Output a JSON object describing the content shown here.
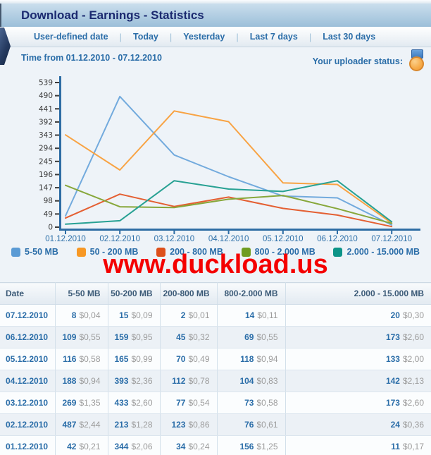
{
  "header": {
    "title": "Download - Earnings - Statistics"
  },
  "tabs": [
    {
      "label": "User-defined date"
    },
    {
      "label": "Today"
    },
    {
      "label": "Yesterday"
    },
    {
      "label": "Last 7 days"
    },
    {
      "label": "Last 30 days"
    }
  ],
  "info": {
    "time_from_label": "Time from 01.12.2010 -  07.12.2010",
    "uploader_status_label": "Your uploader status:",
    "uploader_status_icon": "medal-icon"
  },
  "watermark": "www.duckload.us",
  "colors": {
    "accent_blue": "#2a6da8",
    "axis": "#2e6da4",
    "watermark_red": "#f40000",
    "title_navy": "#1b2a70"
  },
  "chart_data": {
    "type": "line",
    "x": [
      "01.12.2010",
      "02.12.2010",
      "03.12.2010",
      "04.12.2010",
      "05.12.2010",
      "06.12.2010",
      "07.12.2010"
    ],
    "series": [
      {
        "name": "5-50 MB",
        "color": "#72aadd",
        "values": [
          42,
          487,
          269,
          188,
          116,
          109,
          8
        ]
      },
      {
        "name": "50 - 200 MB",
        "color": "#f8a343",
        "values": [
          344,
          213,
          433,
          393,
          165,
          159,
          15
        ]
      },
      {
        "name": "200 - 800 MB",
        "color": "#e45f32",
        "values": [
          34,
          123,
          77,
          112,
          70,
          45,
          2
        ]
      },
      {
        "name": "800 - 2.000 MB",
        "color": "#87a73a",
        "values": [
          156,
          76,
          73,
          104,
          118,
          69,
          14
        ]
      },
      {
        "name": "2.000 - 15.000 MB",
        "color": "#27a193",
        "values": [
          11,
          24,
          173,
          142,
          133,
          173,
          20
        ]
      }
    ],
    "ylim": [
      0,
      539
    ],
    "ytick_step": 49,
    "yticks": [
      0,
      49,
      98,
      147,
      196,
      245,
      294,
      343,
      392,
      441,
      490,
      539
    ],
    "grid": false,
    "legend_position": "bottom",
    "axis_color": "#2e6da4"
  },
  "legend": [
    {
      "label": "5-50 MB",
      "color": "#5b9bd5"
    },
    {
      "label": "50 - 200 MB",
      "color": "#f79825"
    },
    {
      "label": "200 - 800 MB",
      "color": "#dd4f1a"
    },
    {
      "label": "800 - 2.000 MB",
      "color": "#6f9c21"
    },
    {
      "label": "2.000 - 15.000 MB",
      "color": "#0d9488"
    }
  ],
  "table": {
    "columns": [
      "Date",
      "5-50 MB",
      "50-200 MB",
      "200-800 MB",
      "800-2.000 MB",
      "2.000 - 15.000 MB"
    ],
    "rows": [
      {
        "date": "07.12.2010",
        "cells": [
          {
            "count": "8",
            "amount": "$0,04"
          },
          {
            "count": "15",
            "amount": "$0,09"
          },
          {
            "count": "2",
            "amount": "$0,01"
          },
          {
            "count": "14",
            "amount": "$0,11"
          },
          {
            "count": "20",
            "amount": "$0,30"
          }
        ]
      },
      {
        "date": "06.12.2010",
        "cells": [
          {
            "count": "109",
            "amount": "$0,55"
          },
          {
            "count": "159",
            "amount": "$0,95"
          },
          {
            "count": "45",
            "amount": "$0,32"
          },
          {
            "count": "69",
            "amount": "$0,55"
          },
          {
            "count": "173",
            "amount": "$2,60"
          }
        ]
      },
      {
        "date": "05.12.2010",
        "cells": [
          {
            "count": "116",
            "amount": "$0,58"
          },
          {
            "count": "165",
            "amount": "$0,99"
          },
          {
            "count": "70",
            "amount": "$0,49"
          },
          {
            "count": "118",
            "amount": "$0,94"
          },
          {
            "count": "133",
            "amount": "$2,00"
          }
        ]
      },
      {
        "date": "04.12.2010",
        "cells": [
          {
            "count": "188",
            "amount": "$0,94"
          },
          {
            "count": "393",
            "amount": "$2,36"
          },
          {
            "count": "112",
            "amount": "$0,78"
          },
          {
            "count": "104",
            "amount": "$0,83"
          },
          {
            "count": "142",
            "amount": "$2,13"
          }
        ]
      },
      {
        "date": "03.12.2010",
        "cells": [
          {
            "count": "269",
            "amount": "$1,35"
          },
          {
            "count": "433",
            "amount": "$2,60"
          },
          {
            "count": "77",
            "amount": "$0,54"
          },
          {
            "count": "73",
            "amount": "$0,58"
          },
          {
            "count": "173",
            "amount": "$2,60"
          }
        ]
      },
      {
        "date": "02.12.2010",
        "cells": [
          {
            "count": "487",
            "amount": "$2,44"
          },
          {
            "count": "213",
            "amount": "$1,28"
          },
          {
            "count": "123",
            "amount": "$0,86"
          },
          {
            "count": "76",
            "amount": "$0,61"
          },
          {
            "count": "24",
            "amount": "$0,36"
          }
        ]
      },
      {
        "date": "01.12.2010",
        "cells": [
          {
            "count": "42",
            "amount": "$0,21"
          },
          {
            "count": "344",
            "amount": "$2,06"
          },
          {
            "count": "34",
            "amount": "$0,24"
          },
          {
            "count": "156",
            "amount": "$1,25"
          },
          {
            "count": "11",
            "amount": "$0,17"
          }
        ]
      }
    ]
  }
}
